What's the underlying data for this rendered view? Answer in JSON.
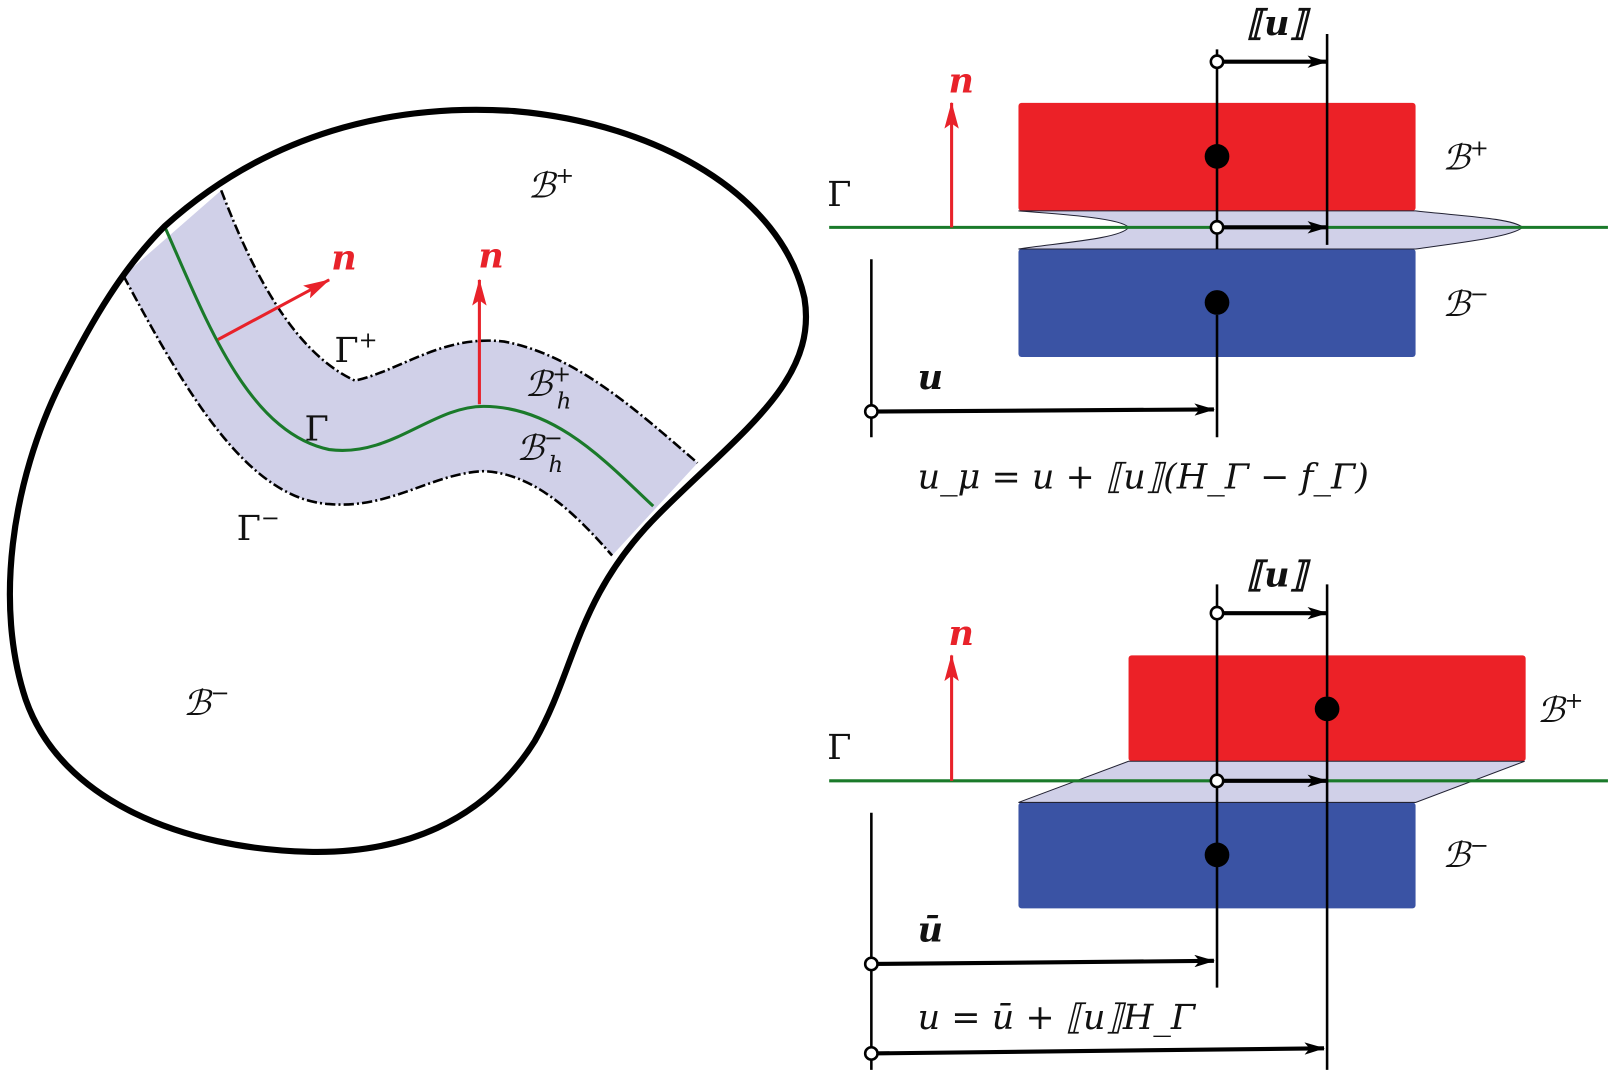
{
  "colors": {
    "body_plus": "#ec2127",
    "body_minus": "#3a53a4",
    "band": "#d0d0e8",
    "interface": "#1a7a2a",
    "normal": "#e8222a",
    "outline": "#000000"
  },
  "left": {
    "b_plus": "ℬ",
    "b_plus_sup": "+",
    "b_minus": "ℬ",
    "b_minus_sup": "−",
    "gamma_plus": "Γ",
    "gamma_plus_sup": "+",
    "gamma_minus": "Γ",
    "gamma_minus_sup": "−",
    "gamma": "Γ",
    "bh_plus": "ℬ",
    "bh_plus_sub": "h",
    "bh_plus_sup": "+",
    "bh_minus": "ℬ",
    "bh_minus_sub": "h",
    "bh_minus_sup": "−",
    "normal_1": "n",
    "normal_2": "n"
  },
  "top_right": {
    "jump": "⟦u⟧",
    "normal": "n",
    "gamma": "Γ",
    "b_plus": "ℬ",
    "b_plus_sup": "+",
    "b_minus": "ℬ",
    "b_minus_sup": "−",
    "u": "u",
    "equation": "u_μ = u + ⟦u⟧(H_Γ − f_Γ)"
  },
  "bottom_right": {
    "jump": "⟦u⟧",
    "normal": "n",
    "gamma": "Γ",
    "b_plus": "ℬ",
    "b_plus_sup": "+",
    "b_minus": "ℬ",
    "b_minus_sup": "−",
    "ubar": "ū",
    "equation": "u = ū + ⟦u⟧H_Γ"
  }
}
